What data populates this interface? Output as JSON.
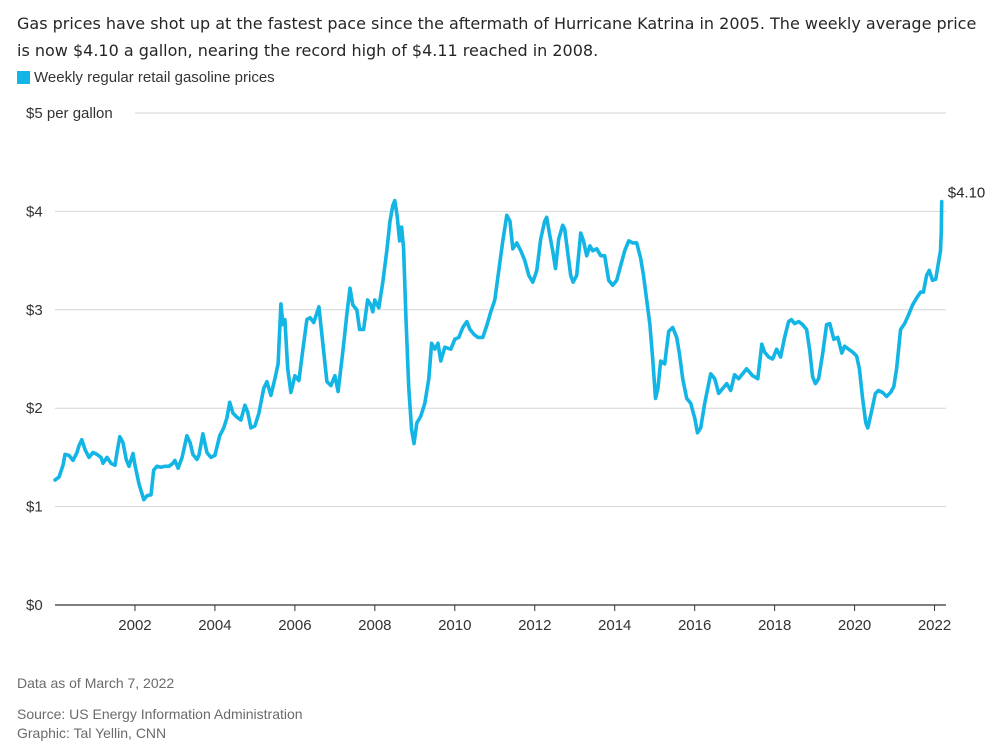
{
  "subtitle": "Gas prices have shot up at the fastest pace since the aftermath of Hurricane Katrina in 2005. The weekly average price is now $4.10 a gallon, nearing the record high of $4.11 reached in 2008.",
  "notes": {
    "data_as_of": "Data as of March 7, 2022",
    "source": "Source: US Energy Information Administration",
    "graphic": "Graphic: Tal Yellin, CNN"
  },
  "colors": {
    "line": "#13b5e5",
    "grid": "#d6d6d6",
    "axis": "#333333"
  },
  "chart_data": {
    "type": "line",
    "title": "",
    "xlabel": "",
    "ylabel": "",
    "xlim": [
      2000.0,
      2022.3
    ],
    "ylim": [
      0,
      5
    ],
    "grid": true,
    "legend_position": "top-left",
    "x_ticks": [
      2002,
      2004,
      2006,
      2008,
      2010,
      2012,
      2014,
      2016,
      2018,
      2020,
      2022
    ],
    "x_tick_labels": [
      "2002",
      "2004",
      "2006",
      "2008",
      "2010",
      "2012",
      "2014",
      "2016",
      "2018",
      "2020",
      "2022"
    ],
    "y_ticks": [
      0,
      1,
      2,
      3,
      4,
      5
    ],
    "y_tick_labels": [
      "$0",
      "$1",
      "$2",
      "$3",
      "$4",
      "$5 per gallon"
    ],
    "end_label": "$4.10",
    "series": [
      {
        "name": "Weekly regular retail gasoline prices",
        "color": "#13b5e5",
        "points": [
          [
            2000.0,
            1.27
          ],
          [
            2000.1,
            1.3
          ],
          [
            2000.2,
            1.42
          ],
          [
            2000.25,
            1.53
          ],
          [
            2000.35,
            1.52
          ],
          [
            2000.45,
            1.47
          ],
          [
            2000.55,
            1.55
          ],
          [
            2000.6,
            1.62
          ],
          [
            2000.67,
            1.68
          ],
          [
            2000.75,
            1.58
          ],
          [
            2000.85,
            1.5
          ],
          [
            2000.95,
            1.55
          ],
          [
            2001.05,
            1.53
          ],
          [
            2001.15,
            1.5
          ],
          [
            2001.2,
            1.44
          ],
          [
            2001.3,
            1.5
          ],
          [
            2001.4,
            1.44
          ],
          [
            2001.5,
            1.42
          ],
          [
            2001.55,
            1.55
          ],
          [
            2001.62,
            1.71
          ],
          [
            2001.7,
            1.65
          ],
          [
            2001.78,
            1.48
          ],
          [
            2001.85,
            1.41
          ],
          [
            2001.95,
            1.54
          ],
          [
            2002.0,
            1.42
          ],
          [
            2002.1,
            1.23
          ],
          [
            2002.22,
            1.07
          ],
          [
            2002.3,
            1.11
          ],
          [
            2002.4,
            1.12
          ],
          [
            2002.47,
            1.37
          ],
          [
            2002.55,
            1.41
          ],
          [
            2002.65,
            1.4
          ],
          [
            2002.75,
            1.41
          ],
          [
            2002.85,
            1.41
          ],
          [
            2002.95,
            1.44
          ],
          [
            2003.0,
            1.47
          ],
          [
            2003.08,
            1.39
          ],
          [
            2003.18,
            1.5
          ],
          [
            2003.3,
            1.72
          ],
          [
            2003.38,
            1.65
          ],
          [
            2003.45,
            1.53
          ],
          [
            2003.55,
            1.48
          ],
          [
            2003.6,
            1.52
          ],
          [
            2003.7,
            1.74
          ],
          [
            2003.8,
            1.55
          ],
          [
            2003.9,
            1.5
          ],
          [
            2004.0,
            1.52
          ],
          [
            2004.12,
            1.72
          ],
          [
            2004.22,
            1.8
          ],
          [
            2004.3,
            1.9
          ],
          [
            2004.37,
            2.06
          ],
          [
            2004.45,
            1.95
          ],
          [
            2004.55,
            1.91
          ],
          [
            2004.65,
            1.88
          ],
          [
            2004.75,
            2.03
          ],
          [
            2004.82,
            1.96
          ],
          [
            2004.9,
            1.8
          ],
          [
            2005.0,
            1.82
          ],
          [
            2005.1,
            1.95
          ],
          [
            2005.22,
            2.2
          ],
          [
            2005.3,
            2.27
          ],
          [
            2005.4,
            2.13
          ],
          [
            2005.5,
            2.3
          ],
          [
            2005.58,
            2.45
          ],
          [
            2005.65,
            3.06
          ],
          [
            2005.7,
            2.85
          ],
          [
            2005.75,
            2.9
          ],
          [
            2005.82,
            2.4
          ],
          [
            2005.9,
            2.16
          ],
          [
            2006.0,
            2.33
          ],
          [
            2006.1,
            2.28
          ],
          [
            2006.2,
            2.6
          ],
          [
            2006.3,
            2.9
          ],
          [
            2006.38,
            2.92
          ],
          [
            2006.47,
            2.87
          ],
          [
            2006.6,
            3.03
          ],
          [
            2006.7,
            2.65
          ],
          [
            2006.8,
            2.27
          ],
          [
            2006.9,
            2.23
          ],
          [
            2007.0,
            2.33
          ],
          [
            2007.08,
            2.17
          ],
          [
            2007.2,
            2.58
          ],
          [
            2007.3,
            2.95
          ],
          [
            2007.38,
            3.22
          ],
          [
            2007.45,
            3.05
          ],
          [
            2007.55,
            3.0
          ],
          [
            2007.62,
            2.8
          ],
          [
            2007.72,
            2.8
          ],
          [
            2007.82,
            3.1
          ],
          [
            2007.9,
            3.05
          ],
          [
            2007.95,
            2.98
          ],
          [
            2008.0,
            3.1
          ],
          [
            2008.1,
            3.02
          ],
          [
            2008.2,
            3.28
          ],
          [
            2008.3,
            3.6
          ],
          [
            2008.38,
            3.9
          ],
          [
            2008.45,
            4.06
          ],
          [
            2008.5,
            4.11
          ],
          [
            2008.56,
            3.95
          ],
          [
            2008.62,
            3.7
          ],
          [
            2008.67,
            3.84
          ],
          [
            2008.72,
            3.62
          ],
          [
            2008.78,
            2.9
          ],
          [
            2008.85,
            2.2
          ],
          [
            2008.92,
            1.78
          ],
          [
            2008.98,
            1.64
          ],
          [
            2009.05,
            1.85
          ],
          [
            2009.15,
            1.92
          ],
          [
            2009.25,
            2.05
          ],
          [
            2009.35,
            2.3
          ],
          [
            2009.42,
            2.66
          ],
          [
            2009.5,
            2.6
          ],
          [
            2009.58,
            2.66
          ],
          [
            2009.65,
            2.48
          ],
          [
            2009.75,
            2.62
          ],
          [
            2009.9,
            2.6
          ],
          [
            2010.0,
            2.7
          ],
          [
            2010.1,
            2.72
          ],
          [
            2010.2,
            2.82
          ],
          [
            2010.3,
            2.88
          ],
          [
            2010.38,
            2.8
          ],
          [
            2010.48,
            2.75
          ],
          [
            2010.58,
            2.72
          ],
          [
            2010.7,
            2.72
          ],
          [
            2010.8,
            2.84
          ],
          [
            2010.9,
            2.98
          ],
          [
            2011.0,
            3.1
          ],
          [
            2011.1,
            3.4
          ],
          [
            2011.2,
            3.7
          ],
          [
            2011.3,
            3.96
          ],
          [
            2011.38,
            3.9
          ],
          [
            2011.45,
            3.62
          ],
          [
            2011.55,
            3.68
          ],
          [
            2011.65,
            3.6
          ],
          [
            2011.75,
            3.5
          ],
          [
            2011.85,
            3.35
          ],
          [
            2011.95,
            3.28
          ],
          [
            2012.05,
            3.4
          ],
          [
            2012.15,
            3.72
          ],
          [
            2012.25,
            3.9
          ],
          [
            2012.3,
            3.94
          ],
          [
            2012.38,
            3.75
          ],
          [
            2012.45,
            3.6
          ],
          [
            2012.52,
            3.42
          ],
          [
            2012.6,
            3.72
          ],
          [
            2012.7,
            3.86
          ],
          [
            2012.75,
            3.82
          ],
          [
            2012.82,
            3.6
          ],
          [
            2012.9,
            3.35
          ],
          [
            2012.96,
            3.28
          ],
          [
            2013.05,
            3.35
          ],
          [
            2013.15,
            3.78
          ],
          [
            2013.22,
            3.7
          ],
          [
            2013.3,
            3.55
          ],
          [
            2013.38,
            3.65
          ],
          [
            2013.45,
            3.6
          ],
          [
            2013.55,
            3.62
          ],
          [
            2013.65,
            3.55
          ],
          [
            2013.75,
            3.55
          ],
          [
            2013.85,
            3.3
          ],
          [
            2013.95,
            3.25
          ],
          [
            2014.05,
            3.3
          ],
          [
            2014.15,
            3.45
          ],
          [
            2014.25,
            3.6
          ],
          [
            2014.35,
            3.7
          ],
          [
            2014.45,
            3.68
          ],
          [
            2014.55,
            3.68
          ],
          [
            2014.65,
            3.52
          ],
          [
            2014.72,
            3.35
          ],
          [
            2014.8,
            3.1
          ],
          [
            2014.88,
            2.85
          ],
          [
            2014.95,
            2.5
          ],
          [
            2015.02,
            2.1
          ],
          [
            2015.08,
            2.2
          ],
          [
            2015.15,
            2.48
          ],
          [
            2015.25,
            2.45
          ],
          [
            2015.35,
            2.78
          ],
          [
            2015.45,
            2.82
          ],
          [
            2015.55,
            2.72
          ],
          [
            2015.62,
            2.55
          ],
          [
            2015.7,
            2.3
          ],
          [
            2015.8,
            2.1
          ],
          [
            2015.9,
            2.05
          ],
          [
            2016.0,
            1.9
          ],
          [
            2016.07,
            1.75
          ],
          [
            2016.15,
            1.8
          ],
          [
            2016.25,
            2.05
          ],
          [
            2016.4,
            2.35
          ],
          [
            2016.5,
            2.3
          ],
          [
            2016.6,
            2.15
          ],
          [
            2016.7,
            2.2
          ],
          [
            2016.8,
            2.25
          ],
          [
            2016.9,
            2.18
          ],
          [
            2017.0,
            2.34
          ],
          [
            2017.1,
            2.3
          ],
          [
            2017.2,
            2.35
          ],
          [
            2017.3,
            2.4
          ],
          [
            2017.45,
            2.33
          ],
          [
            2017.58,
            2.3
          ],
          [
            2017.68,
            2.65
          ],
          [
            2017.75,
            2.57
          ],
          [
            2017.85,
            2.52
          ],
          [
            2017.95,
            2.5
          ],
          [
            2018.05,
            2.6
          ],
          [
            2018.15,
            2.52
          ],
          [
            2018.25,
            2.72
          ],
          [
            2018.35,
            2.88
          ],
          [
            2018.42,
            2.9
          ],
          [
            2018.5,
            2.86
          ],
          [
            2018.6,
            2.88
          ],
          [
            2018.7,
            2.85
          ],
          [
            2018.8,
            2.8
          ],
          [
            2018.88,
            2.58
          ],
          [
            2018.95,
            2.32
          ],
          [
            2019.02,
            2.25
          ],
          [
            2019.1,
            2.3
          ],
          [
            2019.2,
            2.55
          ],
          [
            2019.3,
            2.85
          ],
          [
            2019.38,
            2.86
          ],
          [
            2019.48,
            2.7
          ],
          [
            2019.58,
            2.72
          ],
          [
            2019.68,
            2.56
          ],
          [
            2019.75,
            2.63
          ],
          [
            2019.85,
            2.6
          ],
          [
            2019.95,
            2.57
          ],
          [
            2020.05,
            2.53
          ],
          [
            2020.12,
            2.4
          ],
          [
            2020.2,
            2.1
          ],
          [
            2020.28,
            1.85
          ],
          [
            2020.33,
            1.8
          ],
          [
            2020.42,
            1.96
          ],
          [
            2020.52,
            2.15
          ],
          [
            2020.6,
            2.18
          ],
          [
            2020.7,
            2.16
          ],
          [
            2020.8,
            2.12
          ],
          [
            2020.9,
            2.16
          ],
          [
            2020.98,
            2.22
          ],
          [
            2021.05,
            2.4
          ],
          [
            2021.15,
            2.8
          ],
          [
            2021.25,
            2.86
          ],
          [
            2021.35,
            2.95
          ],
          [
            2021.45,
            3.05
          ],
          [
            2021.55,
            3.12
          ],
          [
            2021.65,
            3.18
          ],
          [
            2021.72,
            3.18
          ],
          [
            2021.8,
            3.35
          ],
          [
            2021.87,
            3.4
          ],
          [
            2021.95,
            3.3
          ],
          [
            2022.03,
            3.31
          ],
          [
            2022.1,
            3.48
          ],
          [
            2022.15,
            3.6
          ],
          [
            2022.17,
            3.8
          ],
          [
            2022.18,
            4.1
          ]
        ]
      }
    ]
  }
}
